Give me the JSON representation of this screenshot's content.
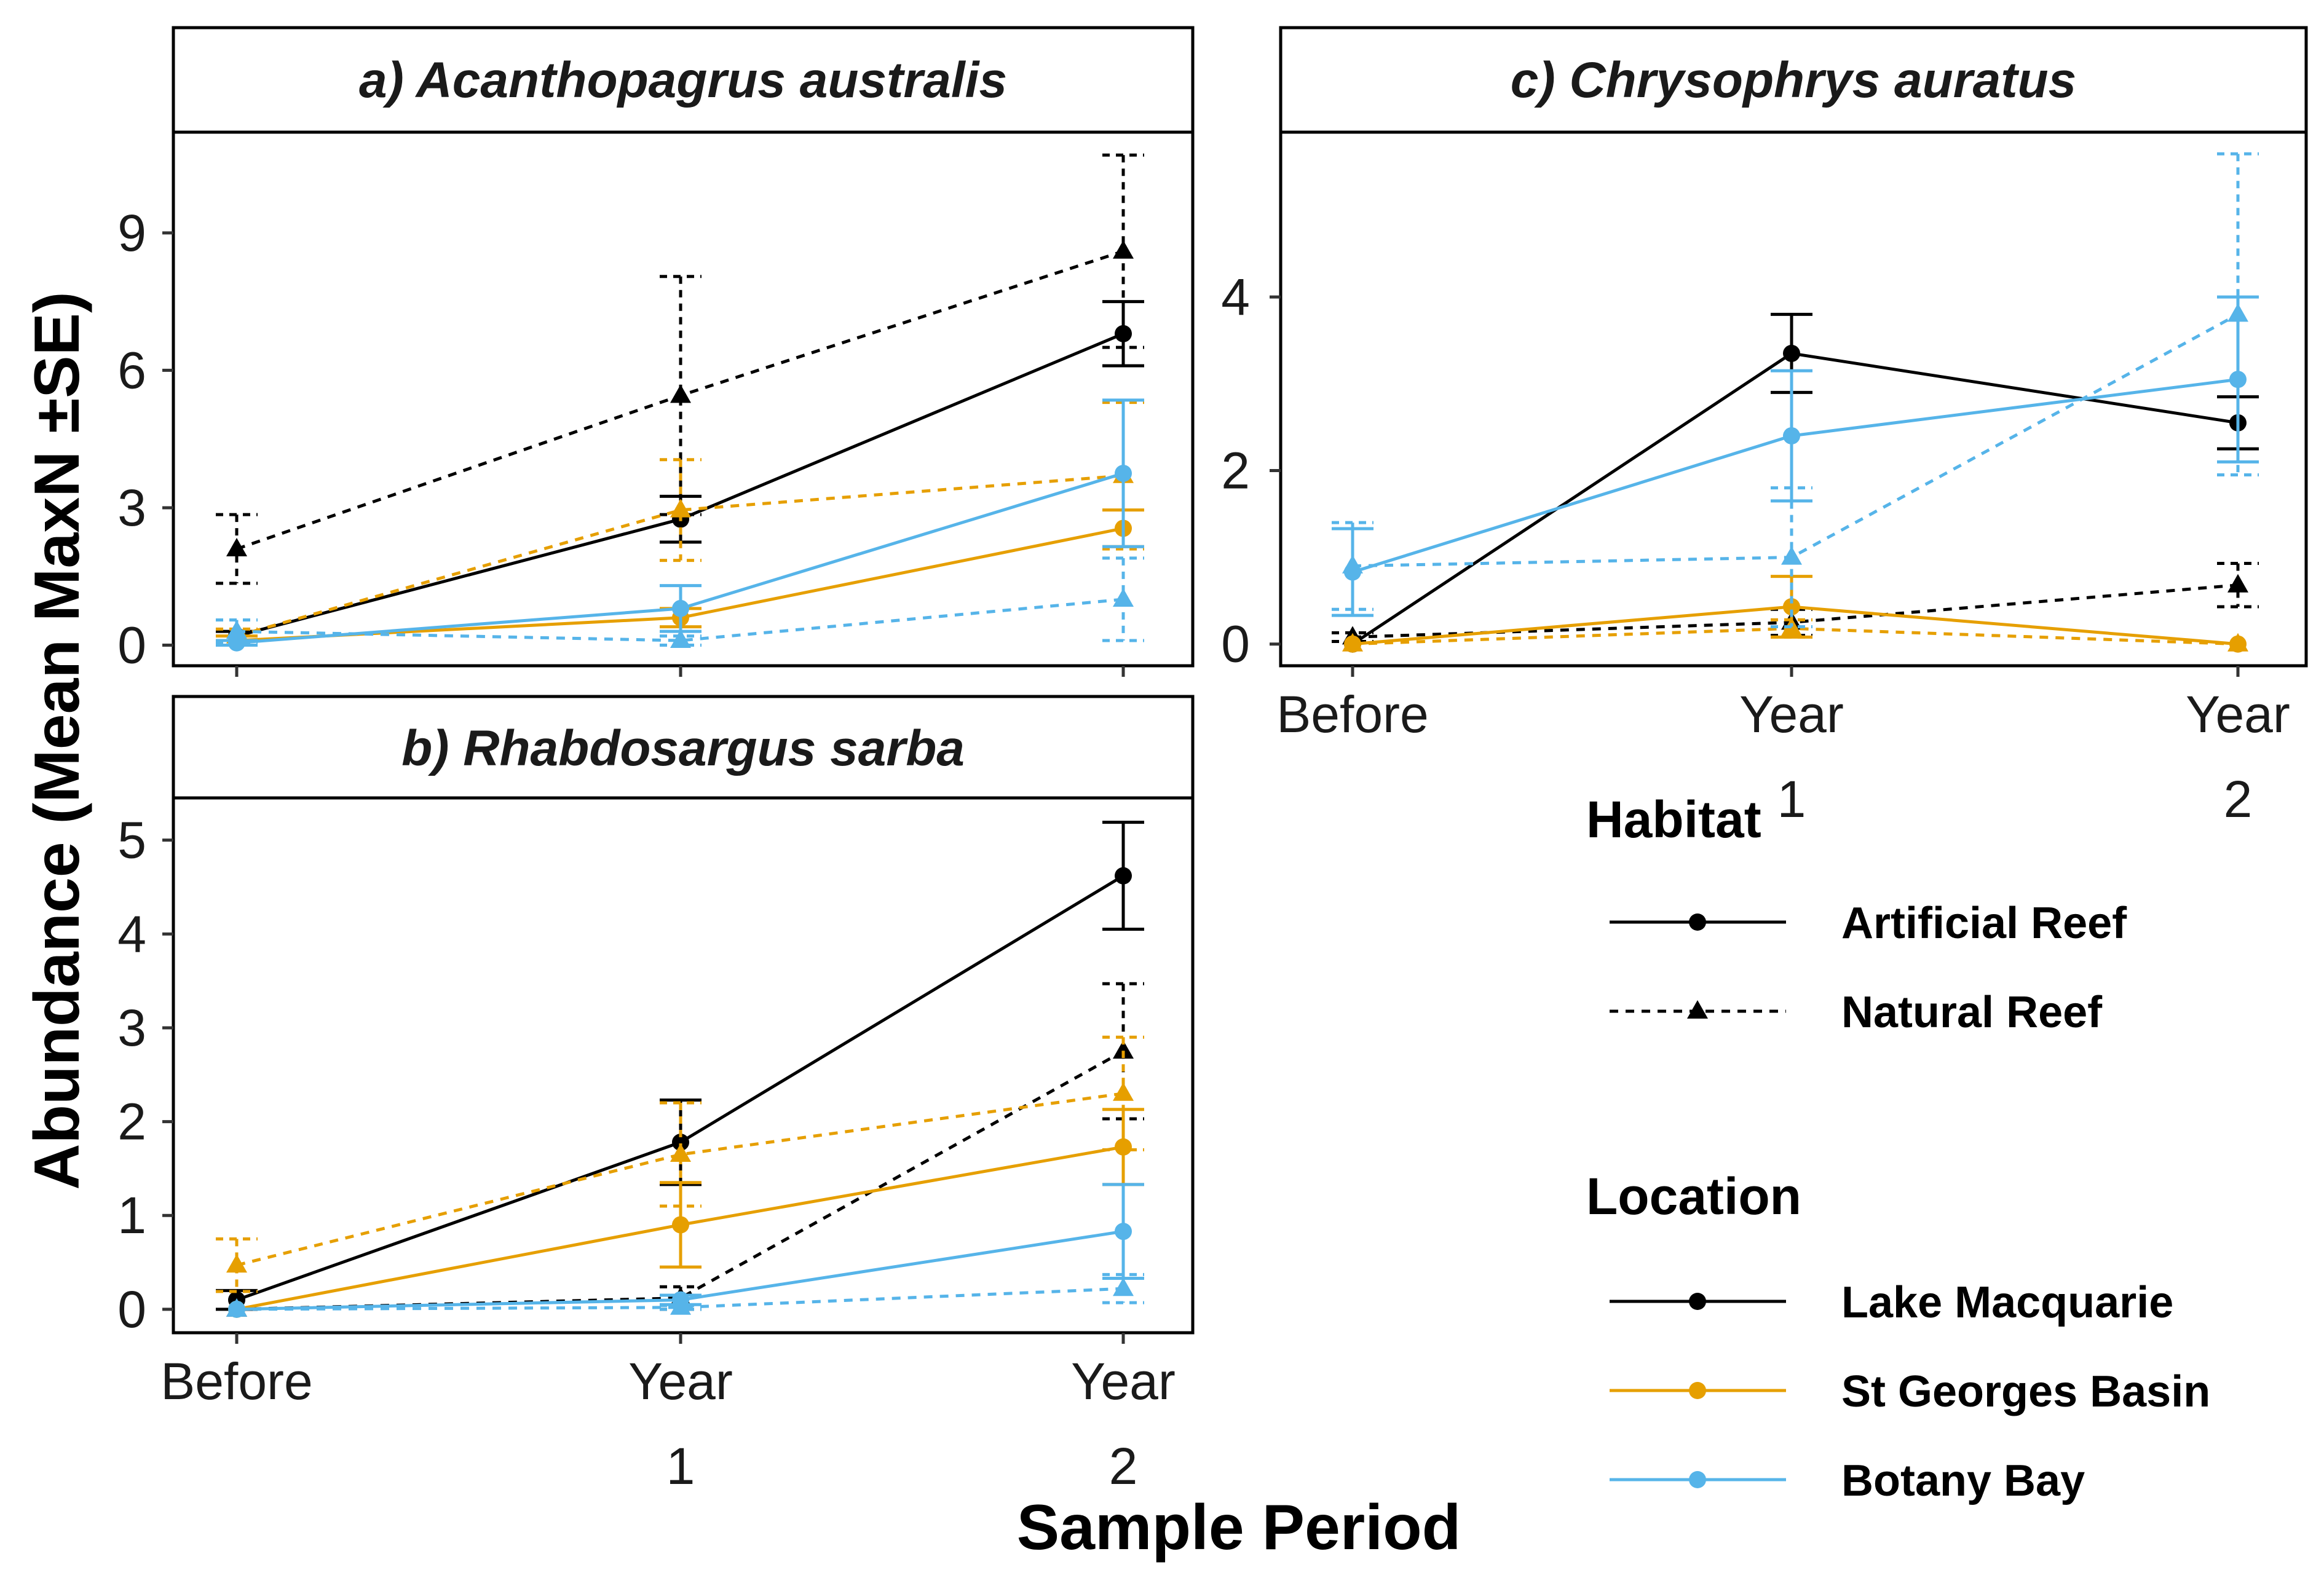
{
  "xlabel": "Sample Period",
  "ylabel": "Abundance (Mean MaxN ±SE)",
  "x_tick_labels": [
    [
      "Before"
    ],
    [
      "Year",
      "1"
    ],
    [
      "Year",
      "2"
    ]
  ],
  "colors": {
    "Lake Macquarie": "#000000",
    "St Georges Basin": "#E69F00",
    "Botany Bay": "#56B4E9"
  },
  "legend": {
    "habitat_title": "Habitat",
    "habitat_items": [
      {
        "label": "Artificial Reef",
        "linetype": "solid",
        "shape": "circle"
      },
      {
        "label": "Natural Reef",
        "linetype": "dashed",
        "shape": "triangle"
      }
    ],
    "location_title": "Location",
    "location_items": [
      {
        "label": "Lake Macquarie",
        "color": "#000000"
      },
      {
        "label": "St Georges Basin",
        "color": "#E69F00"
      },
      {
        "label": "Botany Bay",
        "color": "#56B4E9"
      }
    ]
  },
  "chart_data": [
    {
      "type": "line",
      "title": "a) Acanthopagrus australis",
      "categories": [
        "Before",
        "Year 1",
        "Year 2"
      ],
      "ylim": [
        -0.45,
        11.2
      ],
      "yticks": [
        0,
        3,
        6,
        9
      ],
      "series": [
        {
          "location": "Lake Macquarie",
          "habitat": "Artificial Reef",
          "values": [
            0.2,
            2.75,
            6.8
          ],
          "se": [
            0.1,
            0.5,
            0.7
          ]
        },
        {
          "location": "Lake Macquarie",
          "habitat": "Natural Reef",
          "values": [
            2.1,
            5.45,
            8.6
          ],
          "se": [
            0.75,
            2.6,
            2.1
          ]
        },
        {
          "location": "St Georges Basin",
          "habitat": "Artificial Reef",
          "values": [
            0.1,
            0.6,
            2.55
          ],
          "se": [
            0.1,
            0.2,
            0.4
          ]
        },
        {
          "location": "St Georges Basin",
          "habitat": "Natural Reef",
          "values": [
            0.2,
            2.95,
            3.7
          ],
          "se": [
            0.15,
            1.1,
            1.6
          ]
        },
        {
          "location": "Botany Bay",
          "habitat": "Artificial Reef",
          "values": [
            0.05,
            0.8,
            3.75
          ],
          "se": [
            0.05,
            0.5,
            1.6
          ]
        },
        {
          "location": "Botany Bay",
          "habitat": "Natural Reef",
          "values": [
            0.3,
            0.1,
            1.0
          ],
          "se": [
            0.25,
            0.1,
            0.9
          ]
        }
      ]
    },
    {
      "type": "line",
      "title": "b) Rhabdosargus sarba",
      "categories": [
        "Before",
        "Year 1",
        "Year 2"
      ],
      "ylim": [
        -0.25,
        5.45
      ],
      "yticks": [
        0,
        1,
        2,
        3,
        4,
        5
      ],
      "series": [
        {
          "location": "Lake Macquarie",
          "habitat": "Artificial Reef",
          "values": [
            0.1,
            1.78,
            4.62
          ],
          "se": [
            0.1,
            0.45,
            0.57
          ]
        },
        {
          "location": "Lake Macquarie",
          "habitat": "Natural Reef",
          "values": [
            0.0,
            0.12,
            2.75
          ],
          "se": [
            0.0,
            0.12,
            0.72
          ]
        },
        {
          "location": "St Georges Basin",
          "habitat": "Artificial Reef",
          "values": [
            0.0,
            0.9,
            1.73
          ],
          "se": [
            0.0,
            0.45,
            0.4
          ]
        },
        {
          "location": "St Georges Basin",
          "habitat": "Natural Reef",
          "values": [
            0.47,
            1.65,
            2.3
          ],
          "se": [
            0.28,
            0.55,
            0.6
          ]
        },
        {
          "location": "Botany Bay",
          "habitat": "Artificial Reef",
          "values": [
            0.0,
            0.1,
            0.83
          ],
          "se": [
            0.0,
            0.05,
            0.5
          ]
        },
        {
          "location": "Botany Bay",
          "habitat": "Natural Reef",
          "values": [
            0.0,
            0.02,
            0.22
          ],
          "se": [
            0.0,
            0.02,
            0.15
          ]
        }
      ]
    },
    {
      "type": "line",
      "title": "c) Chrysophrys auratus",
      "categories": [
        "Before",
        "Year 1",
        "Year 2"
      ],
      "ylim": [
        -0.25,
        5.9
      ],
      "yticks": [
        0,
        2,
        4
      ],
      "series": [
        {
          "location": "Lake Macquarie",
          "habitat": "Artificial Reef",
          "values": [
            0.0,
            3.35,
            2.55
          ],
          "se": [
            0.0,
            0.45,
            0.3
          ]
        },
        {
          "location": "Lake Macquarie",
          "habitat": "Natural Reef",
          "values": [
            0.08,
            0.25,
            0.68
          ],
          "se": [
            0.05,
            0.15,
            0.25
          ]
        },
        {
          "location": "St Georges Basin",
          "habitat": "Artificial Reef",
          "values": [
            0.0,
            0.43,
            0.0
          ],
          "se": [
            0.0,
            0.35,
            0.0
          ]
        },
        {
          "location": "St Georges Basin",
          "habitat": "Natural Reef",
          "values": [
            0.0,
            0.18,
            0.0
          ],
          "se": [
            0.0,
            0.1,
            0.0
          ]
        },
        {
          "location": "Botany Bay",
          "habitat": "Artificial Reef",
          "values": [
            0.83,
            2.4,
            3.05
          ],
          "se": [
            0.5,
            0.75,
            0.95
          ]
        },
        {
          "location": "Botany Bay",
          "habitat": "Natural Reef",
          "values": [
            0.9,
            1.0,
            3.8
          ],
          "se": [
            0.5,
            0.8,
            1.85
          ]
        }
      ]
    }
  ]
}
